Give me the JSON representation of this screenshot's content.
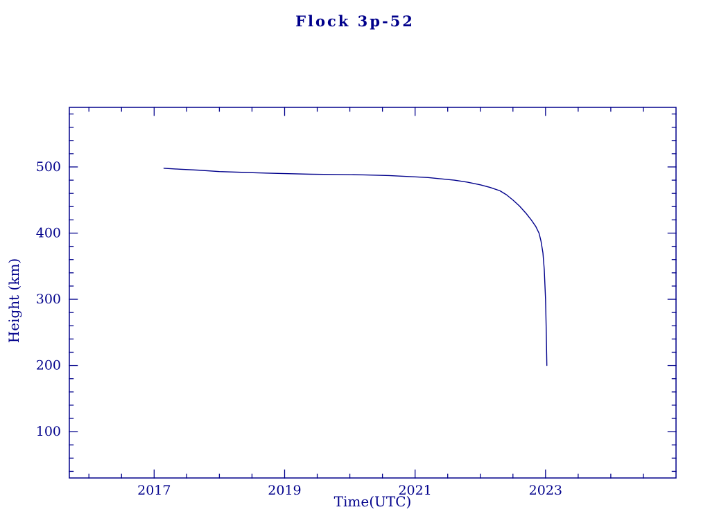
{
  "chart_data": {
    "type": "line",
    "title": "Flock 3p-52",
    "xlabel": "Time(UTC)",
    "ylabel": "Height (km)",
    "xlim": [
      2015.7,
      2025.0
    ],
    "ylim": [
      30,
      590
    ],
    "x_major_ticks": [
      2017,
      2019,
      2021,
      2023
    ],
    "x_minor_step": 0.5,
    "y_major_ticks": [
      100,
      200,
      300,
      400,
      500
    ],
    "y_minor_step": 20,
    "grid": false,
    "legend": "none",
    "axis_color": "#00008b",
    "line_color": "#00008b",
    "background_color": "#ffffff",
    "series": [
      {
        "name": "Flock 3p-52 height",
        "points": [
          [
            2017.15,
            498
          ],
          [
            2017.4,
            496.5
          ],
          [
            2017.7,
            495
          ],
          [
            2018.0,
            493
          ],
          [
            2018.3,
            492
          ],
          [
            2018.6,
            491
          ],
          [
            2019.0,
            490
          ],
          [
            2019.4,
            489
          ],
          [
            2019.8,
            488.5
          ],
          [
            2020.2,
            488
          ],
          [
            2020.6,
            487
          ],
          [
            2021.0,
            485
          ],
          [
            2021.2,
            484
          ],
          [
            2021.4,
            482
          ],
          [
            2021.6,
            480
          ],
          [
            2021.8,
            477
          ],
          [
            2022.0,
            473
          ],
          [
            2022.15,
            469
          ],
          [
            2022.3,
            464
          ],
          [
            2022.4,
            458
          ],
          [
            2022.5,
            450
          ],
          [
            2022.6,
            441
          ],
          [
            2022.7,
            430
          ],
          [
            2022.78,
            420
          ],
          [
            2022.85,
            410
          ],
          [
            2022.9,
            400
          ],
          [
            2022.93,
            388
          ],
          [
            2022.96,
            370
          ],
          [
            2022.98,
            345
          ],
          [
            2023.0,
            300
          ],
          [
            2023.01,
            255
          ],
          [
            2023.02,
            200
          ]
        ]
      }
    ]
  }
}
